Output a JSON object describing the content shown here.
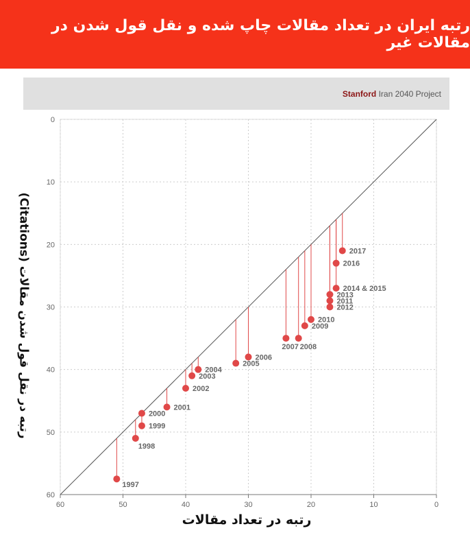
{
  "header": {
    "title": "رتبه ایران در تعداد مقالات چاپ شده و نقل قول شدن در مقالات غیر"
  },
  "credit": {
    "brand": "Stanford",
    "text": " Iran 2040 Project"
  },
  "colors": {
    "header_bg": "#f5321a",
    "point": "#e04848",
    "stem": "#e04848",
    "diagonal": "#555555",
    "grid": "#cccccc"
  },
  "chart_data": {
    "type": "scatter",
    "xlabel": "رتبه در تعداد مقالات",
    "ylabel": "رتبه در نقل قول شدن مقالات (Citations)",
    "xlim": [
      60,
      0
    ],
    "ylim": [
      0,
      60
    ],
    "x_ticks": [
      60,
      50,
      40,
      30,
      20,
      10,
      0
    ],
    "y_ticks": [
      0,
      10,
      20,
      30,
      40,
      50,
      60
    ],
    "grid": true,
    "diagonal": true,
    "points": [
      {
        "label": "1997",
        "x": 51,
        "y": 57.5
      },
      {
        "label": "1998",
        "x": 48,
        "y": 51
      },
      {
        "label": "1999",
        "x": 47,
        "y": 49
      },
      {
        "label": "2000",
        "x": 47,
        "y": 47
      },
      {
        "label": "2001",
        "x": 43,
        "y": 46
      },
      {
        "label": "2002",
        "x": 40,
        "y": 43
      },
      {
        "label": "2003",
        "x": 39,
        "y": 41
      },
      {
        "label": "2004",
        "x": 38,
        "y": 40
      },
      {
        "label": "2005",
        "x": 32,
        "y": 39
      },
      {
        "label": "2006",
        "x": 30,
        "y": 38
      },
      {
        "label": "2007",
        "x": 24,
        "y": 35
      },
      {
        "label": "2008",
        "x": 22,
        "y": 35
      },
      {
        "label": "2009",
        "x": 21,
        "y": 33
      },
      {
        "label": "2010",
        "x": 20,
        "y": 32
      },
      {
        "label": "2012",
        "x": 17,
        "y": 30
      },
      {
        "label": "2011",
        "x": 17,
        "y": 29
      },
      {
        "label": "2013",
        "x": 17,
        "y": 28
      },
      {
        "label": "2014 & 2015",
        "x": 16,
        "y": 27
      },
      {
        "label": "2016",
        "x": 16,
        "y": 23
      },
      {
        "label": "2017",
        "x": 15,
        "y": 21
      }
    ]
  }
}
